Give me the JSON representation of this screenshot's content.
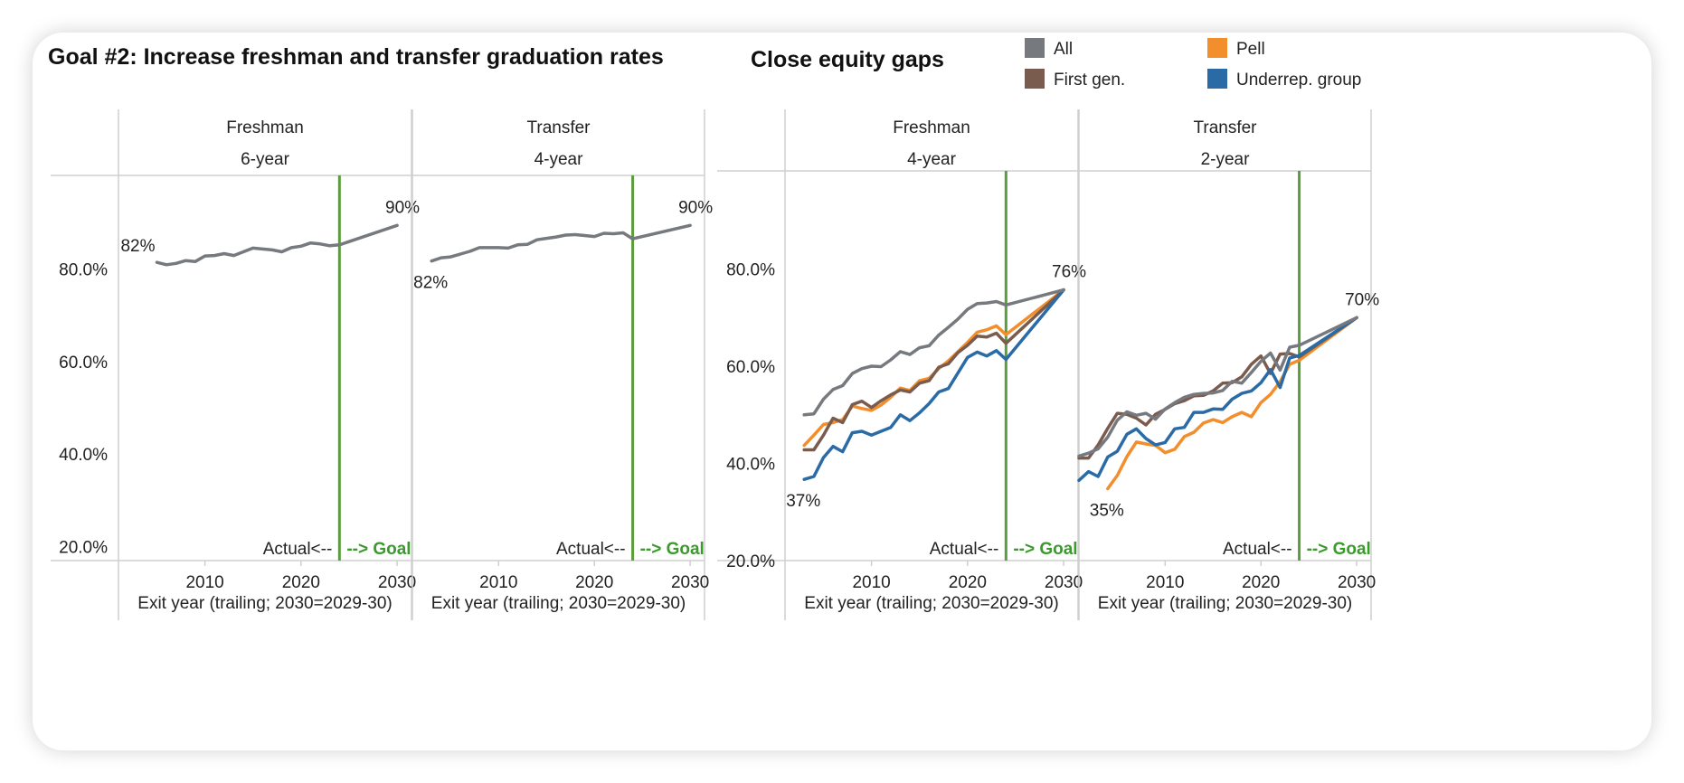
{
  "header": {
    "left_title": "Goal #2: Increase freshman and transfer graduation rates",
    "right_title": "Close equity gaps"
  },
  "legend": [
    {
      "key": "all",
      "label": "All",
      "color": "#76797e"
    },
    {
      "key": "pell",
      "label": "Pell",
      "color": "#f28e2b"
    },
    {
      "key": "firstgen",
      "label": "First gen.",
      "color": "#7a5c4e"
    },
    {
      "key": "urg",
      "label": "Underrep. group",
      "color": "#2a6ba6"
    }
  ],
  "colors": {
    "goal_line": "#5b9c3f",
    "goal_text": "#3a9a2c",
    "gridline": "#cfcfcf"
  },
  "chart_data": [
    {
      "type": "line",
      "header": [
        "Freshman",
        "6-year"
      ],
      "xlabel": "Exit year (trailing; 2030=2029-30)",
      "xticks": [
        2010,
        2020,
        2030
      ],
      "yticks": [
        "80.0%",
        "60.0%",
        "40.0%",
        "20.0%"
      ],
      "ylim": [
        17,
        100
      ],
      "xlim": [
        2001,
        2031.5
      ],
      "goal_year": 2024,
      "actual_label": "Actual<--",
      "goal_label": "--> Goal",
      "start_label": "82%",
      "end_label": "90%",
      "series": [
        {
          "key": "all",
          "x": [
            2005,
            2006,
            2007,
            2008,
            2009,
            2010,
            2011,
            2012,
            2013,
            2014,
            2015,
            2016,
            2017,
            2018,
            2019,
            2020,
            2021,
            2022,
            2023,
            2024,
            2030
          ],
          "y": [
            81.4,
            80.9,
            81.2,
            81.8,
            81.6,
            82.8,
            82.9,
            83.3,
            82.9,
            83.7,
            84.5,
            84.3,
            84.1,
            83.7,
            84.6,
            84.9,
            85.6,
            85.4,
            85.0,
            85.2,
            89.4
          ]
        }
      ]
    },
    {
      "type": "line",
      "header": [
        "Transfer",
        "4-year"
      ],
      "xlabel": "Exit year (trailing; 2030=2029-30)",
      "xticks": [
        2010,
        2020,
        2030
      ],
      "yticks": [],
      "ylim": [
        17,
        100
      ],
      "xlim": [
        2001,
        2031.5
      ],
      "goal_year": 2024,
      "actual_label": "Actual<--",
      "goal_label": "--> Goal",
      "start_label": "82%",
      "end_label": "90%",
      "series": [
        {
          "key": "all",
          "x": [
            2003,
            2004,
            2005,
            2006,
            2007,
            2008,
            2009,
            2010,
            2011,
            2012,
            2013,
            2014,
            2015,
            2016,
            2017,
            2018,
            2019,
            2020,
            2021,
            2022,
            2023,
            2024,
            2030
          ],
          "y": [
            81.7,
            82.4,
            82.6,
            83.2,
            83.8,
            84.6,
            84.6,
            84.6,
            84.5,
            85.2,
            85.3,
            86.3,
            86.6,
            86.9,
            87.3,
            87.4,
            87.2,
            87.0,
            87.7,
            87.6,
            87.8,
            86.5,
            89.4
          ]
        }
      ]
    },
    {
      "type": "line",
      "header": [
        "Freshman",
        "4-year"
      ],
      "xlabel": "Exit year (trailing; 2030=2029-30)",
      "xticks": [
        2010,
        2020,
        2030
      ],
      "yticks": [
        "80.0%",
        "60.0%",
        "40.0%",
        "20.0%"
      ],
      "ylim": [
        20,
        100
      ],
      "xlim": [
        2001,
        2031.5
      ],
      "goal_year": 2024,
      "actual_label": "Actual<--",
      "goal_label": "--> Goal",
      "start_label": "37%",
      "end_label": "76%",
      "series": [
        {
          "key": "all",
          "x": [
            2003,
            2004,
            2005,
            2006,
            2007,
            2008,
            2009,
            2010,
            2011,
            2012,
            2013,
            2014,
            2015,
            2016,
            2017,
            2018,
            2019,
            2020,
            2021,
            2022,
            2023,
            2024,
            2030
          ],
          "y": [
            50.0,
            50.2,
            53.2,
            55.2,
            56.0,
            58.5,
            59.5,
            60.0,
            59.9,
            61.3,
            63.0,
            62.4,
            63.8,
            64.2,
            66.4,
            68.0,
            69.7,
            71.7,
            72.9,
            73.0,
            73.3,
            72.6,
            75.7
          ]
        },
        {
          "key": "pell",
          "x": [
            2003,
            2004,
            2005,
            2006,
            2007,
            2008,
            2009,
            2010,
            2011,
            2012,
            2013,
            2014,
            2015,
            2016,
            2017,
            2018,
            2019,
            2020,
            2021,
            2022,
            2023,
            2024,
            2030
          ],
          "y": [
            43.7,
            45.8,
            48.0,
            48.4,
            49.0,
            51.8,
            51.3,
            50.9,
            52.0,
            53.6,
            55.5,
            55.0,
            57.0,
            57.5,
            59.5,
            61.1,
            63.0,
            64.9,
            67.0,
            67.5,
            68.3,
            66.5,
            75.7
          ]
        },
        {
          "key": "firstgen",
          "x": [
            2003,
            2004,
            2005,
            2006,
            2007,
            2008,
            2009,
            2010,
            2011,
            2012,
            2013,
            2014,
            2015,
            2016,
            2017,
            2018,
            2019,
            2020,
            2021,
            2022,
            2023,
            2024,
            2030
          ],
          "y": [
            42.8,
            42.8,
            45.8,
            49.3,
            48.4,
            52.1,
            52.8,
            51.5,
            52.9,
            54.1,
            55.1,
            54.7,
            56.5,
            57.0,
            59.8,
            60.5,
            62.8,
            64.3,
            66.2,
            66.0,
            66.8,
            64.7,
            75.7
          ]
        },
        {
          "key": "urg",
          "x": [
            2003,
            2004,
            2005,
            2006,
            2007,
            2008,
            2009,
            2010,
            2011,
            2012,
            2013,
            2014,
            2015,
            2016,
            2017,
            2018,
            2019,
            2020,
            2021,
            2022,
            2023,
            2024,
            2030
          ],
          "y": [
            36.7,
            37.3,
            41.2,
            43.5,
            42.4,
            46.3,
            46.6,
            45.8,
            46.6,
            47.4,
            50.0,
            48.8,
            50.4,
            52.3,
            54.7,
            55.4,
            58.6,
            61.8,
            62.9,
            62.1,
            63.2,
            61.4,
            75.7
          ]
        }
      ]
    },
    {
      "type": "line",
      "header": [
        "Transfer",
        "2-year"
      ],
      "xlabel": "Exit year (trailing; 2030=2029-30)",
      "xticks": [
        2010,
        2020,
        2030
      ],
      "yticks": [],
      "ylim": [
        20,
        100
      ],
      "xlim": [
        2001,
        2031.5
      ],
      "goal_year": 2024,
      "actual_label": "Actual<--",
      "goal_label": "--> Goal",
      "start_label": "35%",
      "end_label": "70%",
      "series": [
        {
          "key": "all",
          "x": [
            2001,
            2002,
            2003,
            2004,
            2005,
            2006,
            2007,
            2008,
            2009,
            2010,
            2011,
            2012,
            2013,
            2014,
            2015,
            2016,
            2017,
            2018,
            2019,
            2020,
            2021,
            2022,
            2023,
            2024,
            2030
          ],
          "y": [
            41.5,
            42.1,
            43.0,
            45.4,
            48.9,
            50.6,
            49.9,
            50.3,
            49.1,
            51.2,
            52.5,
            53.6,
            54.2,
            54.4,
            54.5,
            55.0,
            56.9,
            56.5,
            58.7,
            61.0,
            62.7,
            59.2,
            63.9,
            64.3,
            70.0
          ]
        },
        {
          "key": "pell",
          "x": [
            2004,
            2005,
            2006,
            2007,
            2008,
            2009,
            2010,
            2011,
            2012,
            2013,
            2014,
            2015,
            2016,
            2017,
            2018,
            2019,
            2020,
            2021,
            2022,
            2023,
            2024,
            2030
          ],
          "y": [
            34.8,
            37.5,
            41.4,
            44.4,
            44.0,
            43.7,
            42.2,
            42.9,
            45.5,
            46.4,
            48.3,
            49.0,
            48.4,
            49.6,
            50.5,
            49.6,
            52.5,
            54.2,
            56.8,
            60.4,
            61.2,
            70.0
          ]
        },
        {
          "key": "firstgen",
          "x": [
            2001,
            2002,
            2003,
            2004,
            2005,
            2006,
            2007,
            2008,
            2009,
            2010,
            2011,
            2012,
            2013,
            2014,
            2015,
            2016,
            2017,
            2018,
            2019,
            2020,
            2021,
            2022,
            2023,
            2024,
            2030
          ],
          "y": [
            41.1,
            41.1,
            43.8,
            47.2,
            50.3,
            50.1,
            49.3,
            47.9,
            50.1,
            51.1,
            52.3,
            52.9,
            53.9,
            54.0,
            54.9,
            56.5,
            56.6,
            57.8,
            60.4,
            62.1,
            58.5,
            62.5,
            62.6,
            61.9,
            70.0
          ]
        },
        {
          "key": "urg",
          "x": [
            2001,
            2002,
            2003,
            2004,
            2005,
            2006,
            2007,
            2008,
            2009,
            2010,
            2011,
            2012,
            2013,
            2014,
            2015,
            2016,
            2017,
            2018,
            2019,
            2020,
            2021,
            2022,
            2023,
            2024,
            2030
          ],
          "y": [
            36.5,
            38.3,
            37.3,
            41.3,
            42.5,
            46.0,
            47.1,
            45.1,
            43.8,
            44.3,
            47.1,
            47.4,
            50.5,
            50.5,
            51.2,
            51.1,
            53.2,
            54.4,
            54.9,
            56.6,
            59.3,
            55.6,
            61.7,
            62.2,
            70.0
          ]
        }
      ]
    }
  ]
}
